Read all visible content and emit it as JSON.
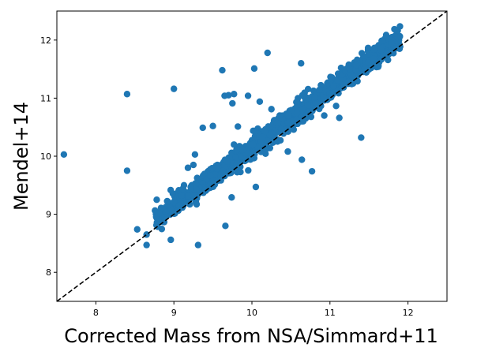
{
  "chart_data": {
    "type": "scatter",
    "title": "",
    "xlabel": "Corrected Mass from NSA/Simmard+11",
    "ylabel": "Mendel+14",
    "xlim": [
      7.5,
      12.5
    ],
    "ylim": [
      7.5,
      12.5
    ],
    "xticks": [
      "8",
      "9",
      "10",
      "11",
      "12"
    ],
    "yticks": [
      "8",
      "9",
      "10",
      "11",
      "12"
    ],
    "grid": false,
    "legend": "none",
    "point_color": "#1f77b4",
    "reference_line": {
      "label": "y = x",
      "style": "dashed",
      "color": "#000000"
    },
    "outliers": [
      [
        7.59,
        10.03
      ],
      [
        8.4,
        11.07
      ],
      [
        8.4,
        9.75
      ],
      [
        8.53,
        8.74
      ],
      [
        8.65,
        8.47
      ],
      [
        8.65,
        8.65
      ],
      [
        8.78,
        9.25
      ],
      [
        8.96,
        8.56
      ],
      [
        9.0,
        11.16
      ],
      [
        9.18,
        9.8
      ],
      [
        9.25,
        9.85
      ],
      [
        9.27,
        10.03
      ],
      [
        9.31,
        8.47
      ],
      [
        9.37,
        10.49
      ],
      [
        9.5,
        10.52
      ],
      [
        9.62,
        11.48
      ],
      [
        9.65,
        11.04
      ],
      [
        9.7,
        11.05
      ],
      [
        9.75,
        10.91
      ],
      [
        9.77,
        11.07
      ],
      [
        9.82,
        10.51
      ],
      [
        9.95,
        11.04
      ],
      [
        10.03,
        11.51
      ],
      [
        10.1,
        10.94
      ],
      [
        10.2,
        11.78
      ],
      [
        10.25,
        10.81
      ],
      [
        10.63,
        11.6
      ],
      [
        10.64,
        9.94
      ],
      [
        10.77,
        9.74
      ],
      [
        11.12,
        10.66
      ],
      [
        11.4,
        10.32
      ],
      [
        9.66,
        8.8
      ],
      [
        10.05,
        9.47
      ],
      [
        9.74,
        9.29
      ],
      [
        10.46,
        10.08
      ]
    ],
    "main_cloud": {
      "x_range": [
        8.75,
        11.9
      ],
      "relation": "y ≈ x + 0.15",
      "scatter_sd": 0.09,
      "n_points": 1400
    }
  }
}
